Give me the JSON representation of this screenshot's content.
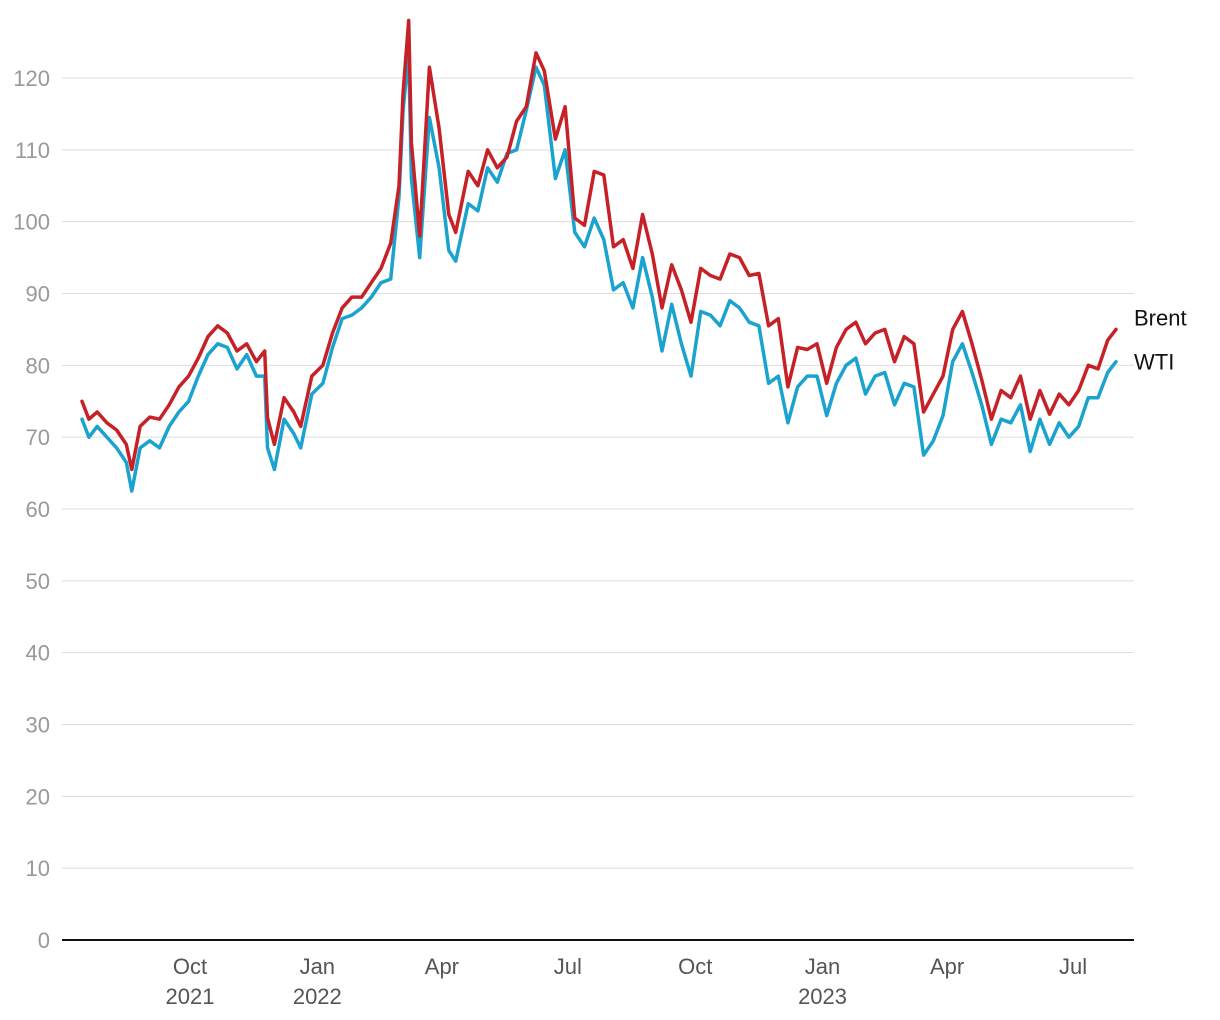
{
  "chart_data": {
    "type": "line",
    "title": "",
    "xlabel": "",
    "ylabel": "",
    "ylim": [
      0,
      128
    ],
    "grid": true,
    "legend": "direct labels at right end of lines",
    "y_ticks": [
      0,
      10,
      20,
      30,
      40,
      50,
      60,
      70,
      80,
      90,
      100,
      110,
      120
    ],
    "x_ticks": [
      {
        "date": "2021-10-01",
        "label": "Oct",
        "year": "2021"
      },
      {
        "date": "2022-01-01",
        "label": "Jan",
        "year": "2022"
      },
      {
        "date": "2022-04-01",
        "label": "Apr",
        "year": ""
      },
      {
        "date": "2022-07-01",
        "label": "Jul",
        "year": ""
      },
      {
        "date": "2022-10-01",
        "label": "Oct",
        "year": ""
      },
      {
        "date": "2023-01-01",
        "label": "Jan",
        "year": "2023"
      },
      {
        "date": "2023-04-01",
        "label": "Apr",
        "year": ""
      },
      {
        "date": "2023-07-01",
        "label": "Jul",
        "year": ""
      }
    ],
    "x_range": [
      "2021-07-15",
      "2023-08-25"
    ],
    "series": [
      {
        "name": "Brent",
        "color": "#c62127",
        "points": [
          [
            "2021-07-15",
            75.0
          ],
          [
            "2021-07-20",
            72.5
          ],
          [
            "2021-07-26",
            73.5
          ],
          [
            "2021-08-02",
            72.0
          ],
          [
            "2021-08-09",
            71.0
          ],
          [
            "2021-08-16",
            69.0
          ],
          [
            "2021-08-20",
            65.5
          ],
          [
            "2021-08-26",
            71.5
          ],
          [
            "2021-09-02",
            72.8
          ],
          [
            "2021-09-09",
            72.5
          ],
          [
            "2021-09-16",
            74.5
          ],
          [
            "2021-09-23",
            77.0
          ],
          [
            "2021-09-30",
            78.5
          ],
          [
            "2021-10-07",
            81.0
          ],
          [
            "2021-10-14",
            84.0
          ],
          [
            "2021-10-21",
            85.5
          ],
          [
            "2021-10-28",
            84.5
          ],
          [
            "2021-11-04",
            82.0
          ],
          [
            "2021-11-11",
            83.0
          ],
          [
            "2021-11-18",
            80.5
          ],
          [
            "2021-11-24",
            82.0
          ],
          [
            "2021-11-26",
            72.7
          ],
          [
            "2021-12-01",
            69.0
          ],
          [
            "2021-12-08",
            75.5
          ],
          [
            "2021-12-15",
            73.5
          ],
          [
            "2021-12-20",
            71.5
          ],
          [
            "2021-12-28",
            78.5
          ],
          [
            "2022-01-05",
            80.0
          ],
          [
            "2022-01-12",
            84.5
          ],
          [
            "2022-01-19",
            88.0
          ],
          [
            "2022-01-26",
            89.5
          ],
          [
            "2022-02-02",
            89.5
          ],
          [
            "2022-02-09",
            91.5
          ],
          [
            "2022-02-16",
            93.5
          ],
          [
            "2022-02-23",
            97.0
          ],
          [
            "2022-03-01",
            105.0
          ],
          [
            "2022-03-04",
            118.0
          ],
          [
            "2022-03-08",
            128.0
          ],
          [
            "2022-03-10",
            111.0
          ],
          [
            "2022-03-16",
            98.0
          ],
          [
            "2022-03-23",
            121.5
          ],
          [
            "2022-03-30",
            113.0
          ],
          [
            "2022-04-06",
            101.0
          ],
          [
            "2022-04-11",
            98.5
          ],
          [
            "2022-04-20",
            107.0
          ],
          [
            "2022-04-27",
            105.0
          ],
          [
            "2022-05-04",
            110.0
          ],
          [
            "2022-05-11",
            107.5
          ],
          [
            "2022-05-18",
            109.0
          ],
          [
            "2022-05-25",
            114.0
          ],
          [
            "2022-06-01",
            116.0
          ],
          [
            "2022-06-08",
            123.5
          ],
          [
            "2022-06-14",
            121.0
          ],
          [
            "2022-06-22",
            111.5
          ],
          [
            "2022-06-29",
            116.0
          ],
          [
            "2022-07-06",
            100.5
          ],
          [
            "2022-07-13",
            99.5
          ],
          [
            "2022-07-20",
            107.0
          ],
          [
            "2022-07-27",
            106.5
          ],
          [
            "2022-08-03",
            96.5
          ],
          [
            "2022-08-10",
            97.5
          ],
          [
            "2022-08-17",
            93.5
          ],
          [
            "2022-08-24",
            101.0
          ],
          [
            "2022-08-31",
            95.5
          ],
          [
            "2022-09-07",
            88.0
          ],
          [
            "2022-09-14",
            94.0
          ],
          [
            "2022-09-21",
            90.5
          ],
          [
            "2022-09-28",
            86.0
          ],
          [
            "2022-10-05",
            93.5
          ],
          [
            "2022-10-12",
            92.5
          ],
          [
            "2022-10-19",
            92.0
          ],
          [
            "2022-10-26",
            95.5
          ],
          [
            "2022-11-02",
            95.0
          ],
          [
            "2022-11-09",
            92.5
          ],
          [
            "2022-11-16",
            92.8
          ],
          [
            "2022-11-23",
            85.5
          ],
          [
            "2022-11-30",
            86.5
          ],
          [
            "2022-12-07",
            77.0
          ],
          [
            "2022-12-14",
            82.5
          ],
          [
            "2022-12-21",
            82.2
          ],
          [
            "2022-12-28",
            83.0
          ],
          [
            "2023-01-04",
            77.5
          ],
          [
            "2023-01-11",
            82.5
          ],
          [
            "2023-01-18",
            85.0
          ],
          [
            "2023-01-25",
            86.0
          ],
          [
            "2023-02-01",
            83.0
          ],
          [
            "2023-02-08",
            84.5
          ],
          [
            "2023-02-15",
            85.0
          ],
          [
            "2023-02-22",
            80.5
          ],
          [
            "2023-03-01",
            84.0
          ],
          [
            "2023-03-08",
            83.0
          ],
          [
            "2023-03-15",
            73.5
          ],
          [
            "2023-03-22",
            76.0
          ],
          [
            "2023-03-29",
            78.5
          ],
          [
            "2023-04-05",
            85.0
          ],
          [
            "2023-04-12",
            87.5
          ],
          [
            "2023-04-19",
            83.0
          ],
          [
            "2023-04-26",
            78.0
          ],
          [
            "2023-05-03",
            72.5
          ],
          [
            "2023-05-10",
            76.5
          ],
          [
            "2023-05-17",
            75.5
          ],
          [
            "2023-05-24",
            78.5
          ],
          [
            "2023-05-31",
            72.5
          ],
          [
            "2023-06-07",
            76.5
          ],
          [
            "2023-06-14",
            73.2
          ],
          [
            "2023-06-21",
            76.0
          ],
          [
            "2023-06-28",
            74.5
          ],
          [
            "2023-07-05",
            76.5
          ],
          [
            "2023-07-12",
            80.0
          ],
          [
            "2023-07-19",
            79.5
          ],
          [
            "2023-07-26",
            83.5
          ],
          [
            "2023-08-01",
            85.0
          ]
        ]
      },
      {
        "name": "WTI",
        "color": "#1ba3cf",
        "points": [
          [
            "2021-07-15",
            72.5
          ],
          [
            "2021-07-20",
            70.0
          ],
          [
            "2021-07-26",
            71.5
          ],
          [
            "2021-08-02",
            70.0
          ],
          [
            "2021-08-09",
            68.5
          ],
          [
            "2021-08-16",
            66.5
          ],
          [
            "2021-08-20",
            62.5
          ],
          [
            "2021-08-26",
            68.5
          ],
          [
            "2021-09-02",
            69.5
          ],
          [
            "2021-09-09",
            68.5
          ],
          [
            "2021-09-16",
            71.5
          ],
          [
            "2021-09-23",
            73.5
          ],
          [
            "2021-09-30",
            75.0
          ],
          [
            "2021-10-07",
            78.5
          ],
          [
            "2021-10-14",
            81.5
          ],
          [
            "2021-10-21",
            83.0
          ],
          [
            "2021-10-28",
            82.5
          ],
          [
            "2021-11-04",
            79.5
          ],
          [
            "2021-11-11",
            81.5
          ],
          [
            "2021-11-18",
            78.5
          ],
          [
            "2021-11-24",
            78.5
          ],
          [
            "2021-11-26",
            68.5
          ],
          [
            "2021-12-01",
            65.5
          ],
          [
            "2021-12-08",
            72.5
          ],
          [
            "2021-12-15",
            70.5
          ],
          [
            "2021-12-20",
            68.5
          ],
          [
            "2021-12-28",
            76.0
          ],
          [
            "2022-01-05",
            77.5
          ],
          [
            "2022-01-12",
            82.5
          ],
          [
            "2022-01-19",
            86.5
          ],
          [
            "2022-01-26",
            87.0
          ],
          [
            "2022-02-02",
            88.0
          ],
          [
            "2022-02-09",
            89.5
          ],
          [
            "2022-02-16",
            91.5
          ],
          [
            "2022-02-23",
            92.0
          ],
          [
            "2022-03-01",
            103.5
          ],
          [
            "2022-03-04",
            115.5
          ],
          [
            "2022-03-08",
            123.5
          ],
          [
            "2022-03-10",
            106.0
          ],
          [
            "2022-03-16",
            95.0
          ],
          [
            "2022-03-23",
            114.5
          ],
          [
            "2022-03-30",
            107.5
          ],
          [
            "2022-04-06",
            96.0
          ],
          [
            "2022-04-11",
            94.5
          ],
          [
            "2022-04-20",
            102.5
          ],
          [
            "2022-04-27",
            101.5
          ],
          [
            "2022-05-04",
            107.5
          ],
          [
            "2022-05-11",
            105.5
          ],
          [
            "2022-05-18",
            109.5
          ],
          [
            "2022-05-25",
            110.0
          ],
          [
            "2022-06-01",
            115.5
          ],
          [
            "2022-06-08",
            121.5
          ],
          [
            "2022-06-14",
            119.0
          ],
          [
            "2022-06-22",
            106.0
          ],
          [
            "2022-06-29",
            110.0
          ],
          [
            "2022-07-06",
            98.5
          ],
          [
            "2022-07-13",
            96.5
          ],
          [
            "2022-07-20",
            100.5
          ],
          [
            "2022-07-27",
            97.5
          ],
          [
            "2022-08-03",
            90.5
          ],
          [
            "2022-08-10",
            91.5
          ],
          [
            "2022-08-17",
            88.0
          ],
          [
            "2022-08-24",
            95.0
          ],
          [
            "2022-08-31",
            89.5
          ],
          [
            "2022-09-07",
            82.0
          ],
          [
            "2022-09-14",
            88.5
          ],
          [
            "2022-09-21",
            83.0
          ],
          [
            "2022-09-28",
            78.5
          ],
          [
            "2022-10-05",
            87.5
          ],
          [
            "2022-10-12",
            87.0
          ],
          [
            "2022-10-19",
            85.5
          ],
          [
            "2022-10-26",
            89.0
          ],
          [
            "2022-11-02",
            88.0
          ],
          [
            "2022-11-09",
            86.0
          ],
          [
            "2022-11-16",
            85.5
          ],
          [
            "2022-11-23",
            77.5
          ],
          [
            "2022-11-30",
            78.5
          ],
          [
            "2022-12-07",
            72.0
          ],
          [
            "2022-12-14",
            77.0
          ],
          [
            "2022-12-21",
            78.5
          ],
          [
            "2022-12-28",
            78.5
          ],
          [
            "2023-01-04",
            73.0
          ],
          [
            "2023-01-11",
            77.5
          ],
          [
            "2023-01-18",
            80.0
          ],
          [
            "2023-01-25",
            81.0
          ],
          [
            "2023-02-01",
            76.0
          ],
          [
            "2023-02-08",
            78.5
          ],
          [
            "2023-02-15",
            79.0
          ],
          [
            "2023-02-22",
            74.5
          ],
          [
            "2023-03-01",
            77.5
          ],
          [
            "2023-03-08",
            77.0
          ],
          [
            "2023-03-15",
            67.5
          ],
          [
            "2023-03-22",
            69.5
          ],
          [
            "2023-03-29",
            73.0
          ],
          [
            "2023-04-05",
            80.5
          ],
          [
            "2023-04-12",
            83.0
          ],
          [
            "2023-04-19",
            79.0
          ],
          [
            "2023-04-26",
            74.5
          ],
          [
            "2023-05-03",
            69.0
          ],
          [
            "2023-05-10",
            72.5
          ],
          [
            "2023-05-17",
            72.0
          ],
          [
            "2023-05-24",
            74.5
          ],
          [
            "2023-05-31",
            68.0
          ],
          [
            "2023-06-07",
            72.5
          ],
          [
            "2023-06-14",
            69.0
          ],
          [
            "2023-06-21",
            72.0
          ],
          [
            "2023-06-28",
            70.0
          ],
          [
            "2023-07-05",
            71.5
          ],
          [
            "2023-07-12",
            75.5
          ],
          [
            "2023-07-19",
            75.5
          ],
          [
            "2023-07-26",
            79.0
          ],
          [
            "2023-08-01",
            80.5
          ]
        ]
      }
    ]
  }
}
